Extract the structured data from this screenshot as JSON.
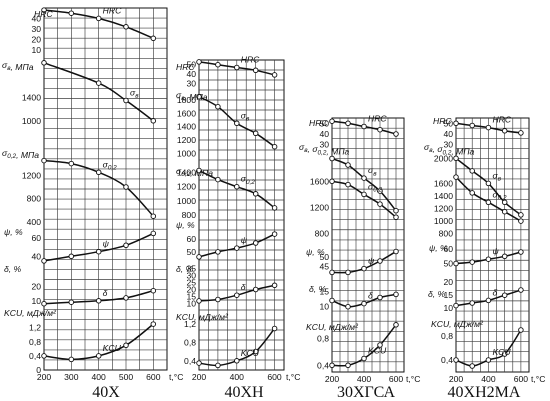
{
  "chart_data": [
    {
      "type": "line",
      "title": "40Х",
      "xlabel": "t,°C",
      "x_ticks": [
        "200",
        "300",
        "400",
        "500",
        "600"
      ],
      "xlim": [
        200,
        650
      ],
      "axes": [
        {
          "label": "HRC",
          "ticks": [
            "10",
            "20",
            "30",
            "40"
          ],
          "ylim": [
            5,
            50
          ]
        },
        {
          "label": "σв, МПа",
          "ticks": [
            "1000",
            "1400"
          ],
          "ylim": [
            600,
            2100
          ]
        },
        {
          "label": "σ0,2, МПа",
          "ticks": [
            "400",
            "800",
            "1200"
          ],
          "ylim": [
            350,
            1700
          ]
        },
        {
          "label": "ψ, %",
          "ticks": [
            "40",
            "60"
          ],
          "ylim": [
            25,
            72
          ]
        },
        {
          "label": "δ, %",
          "ticks": [
            "10",
            "20"
          ],
          "ylim": [
            5,
            30
          ]
        },
        {
          "label": "KCU, мДж/м²",
          "ticks": [
            "0",
            "0,4",
            "0,8",
            "1,2"
          ],
          "ylim": [
            0,
            1.7
          ]
        }
      ],
      "series": [
        {
          "name": "HRC",
          "axis": 0,
          "x": [
            200,
            300,
            400,
            500,
            600
          ],
          "y": [
            48,
            45,
            40,
            32,
            21
          ]
        },
        {
          "name": "σв",
          "axis": 1,
          "x": [
            200,
            400,
            500,
            600
          ],
          "y": [
            2000,
            1650,
            1350,
            1000
          ]
        },
        {
          "name": "σ0,2",
          "axis": 2,
          "x": [
            200,
            300,
            400,
            500,
            600
          ],
          "y": [
            1450,
            1400,
            1250,
            1000,
            500
          ]
        },
        {
          "name": "ψ",
          "axis": 3,
          "x": [
            200,
            300,
            400,
            500,
            600
          ],
          "y": [
            35,
            40,
            45,
            52,
            65
          ]
        },
        {
          "name": "δ",
          "axis": 4,
          "x": [
            200,
            300,
            400,
            500,
            600
          ],
          "y": [
            8,
            9,
            10,
            12,
            17
          ]
        },
        {
          "name": "KCU",
          "axis": 5,
          "x": [
            200,
            300,
            400,
            500,
            600
          ],
          "y": [
            0.4,
            0.3,
            0.4,
            0.7,
            1.3
          ]
        }
      ]
    },
    {
      "type": "line",
      "title": "40ХН",
      "xlabel": "t,°C",
      "x_ticks": [
        "200",
        "400",
        "600"
      ],
      "xlim": [
        200,
        650
      ],
      "axes": [
        {
          "label": "HRC",
          "ticks": [
            "30",
            "40",
            "50"
          ],
          "ylim": [
            25,
            55
          ]
        },
        {
          "label": "σв, МПа",
          "ticks": [
            "1000",
            "1200",
            "1400",
            "1600",
            "1800"
          ],
          "ylim": [
            900,
            1950
          ]
        },
        {
          "label": "σ0,2, МПа",
          "ticks": [
            "800",
            "1000",
            "1200",
            "1400"
          ],
          "ylim": [
            700,
            1550
          ]
        },
        {
          "label": "ψ, %",
          "ticks": [
            "50",
            "60"
          ],
          "ylim": [
            42,
            72
          ]
        },
        {
          "label": "δ, %",
          "ticks": [
            "10",
            "15",
            "20",
            "25",
            "30",
            "35"
          ],
          "ylim": [
            7,
            38
          ]
        },
        {
          "label": "KCU, мДж/м²",
          "ticks": [
            "0,4",
            "0,8",
            "1,2"
          ],
          "ylim": [
            0.2,
            1.5
          ]
        }
      ],
      "series": [
        {
          "name": "HRC",
          "axis": 0,
          "x": [
            200,
            300,
            400,
            500,
            600
          ],
          "y": [
            53,
            50,
            47,
            44,
            39
          ]
        },
        {
          "name": "σв",
          "axis": 1,
          "x": [
            200,
            300,
            400,
            500,
            600
          ],
          "y": [
            1850,
            1700,
            1450,
            1300,
            1100
          ]
        },
        {
          "name": "σ0,2",
          "axis": 2,
          "x": [
            200,
            300,
            400,
            500,
            600
          ],
          "y": [
            1430,
            1300,
            1200,
            1100,
            900
          ]
        },
        {
          "name": "ψ",
          "axis": 3,
          "x": [
            200,
            300,
            400,
            500,
            600
          ],
          "y": [
            46,
            50,
            53,
            57,
            64
          ]
        },
        {
          "name": "δ",
          "axis": 4,
          "x": [
            200,
            300,
            400,
            500,
            600
          ],
          "y": [
            12,
            13,
            16,
            20,
            23
          ]
        },
        {
          "name": "KCU",
          "axis": 5,
          "x": [
            200,
            300,
            400,
            500,
            600
          ],
          "y": [
            0.35,
            0.3,
            0.4,
            0.6,
            1.1
          ]
        }
      ]
    },
    {
      "type": "line",
      "title": "30ХГСА",
      "xlabel": "t,°C",
      "x_ticks": [
        "200",
        "400",
        "600"
      ],
      "xlim": [
        200,
        650
      ],
      "axes": [
        {
          "label": "HRC",
          "ticks": [
            "30",
            "40",
            "50"
          ],
          "ylim": [
            25,
            55
          ]
        },
        {
          "label": "σв, σ0,2, МПа",
          "ticks": [
            "800",
            "1200",
            "1600"
          ],
          "ylim": [
            700,
            2050
          ]
        },
        {
          "label": "ψ, %",
          "ticks": [
            "45",
            "50"
          ],
          "ylim": [
            38,
            58
          ]
        },
        {
          "label": "δ, %",
          "ticks": [
            "10",
            "15"
          ],
          "ylim": [
            7,
            18
          ]
        },
        {
          "label": "KCU, мДж/м²",
          "ticks": [
            "0,4",
            "0,8"
          ],
          "ylim": [
            0.3,
            1.1
          ]
        }
      ],
      "series": [
        {
          "name": "HRC",
          "axis": 0,
          "x": [
            200,
            300,
            400,
            500,
            600
          ],
          "y": [
            52,
            50,
            47,
            44,
            40
          ]
        },
        {
          "name": "σв",
          "axis": 1,
          "x": [
            200,
            300,
            400,
            500,
            600
          ],
          "y": [
            1950,
            1850,
            1650,
            1450,
            1150
          ]
        },
        {
          "name": "σ0,2",
          "axis": 1,
          "x": [
            200,
            300,
            400,
            500,
            600
          ],
          "y": [
            1600,
            1550,
            1400,
            1250,
            1050
          ]
        },
        {
          "name": "ψ",
          "axis": 2,
          "x": [
            200,
            300,
            400,
            500,
            600
          ],
          "y": [
            42,
            42,
            44,
            48,
            53
          ]
        },
        {
          "name": "δ",
          "axis": 3,
          "x": [
            200,
            300,
            400,
            500,
            600
          ],
          "y": [
            12,
            10,
            11,
            13,
            14
          ]
        },
        {
          "name": "KCU",
          "axis": 4,
          "x": [
            200,
            300,
            400,
            500,
            600
          ],
          "y": [
            0.4,
            0.4,
            0.5,
            0.7,
            1.0
          ]
        }
      ]
    },
    {
      "type": "line",
      "title": "40ХН2МА",
      "xlabel": "t,°C",
      "x_ticks": [
        "200",
        "400",
        "600"
      ],
      "xlim": [
        200,
        650
      ],
      "axes": [
        {
          "label": "HRC",
          "ticks": [
            "30",
            "40",
            "50"
          ],
          "ylim": [
            25,
            55
          ]
        },
        {
          "label": "σв, σ0,2, МПа",
          "ticks": [
            "800",
            "1000",
            "1200",
            "1400",
            "1600",
            "2000"
          ],
          "ylim": [
            700,
            2100
          ]
        },
        {
          "label": "ψ, %",
          "ticks": [
            "50",
            "60"
          ],
          "ylim": [
            42,
            65
          ]
        },
        {
          "label": "δ, %",
          "ticks": [
            "10",
            "15",
            "20"
          ],
          "ylim": [
            7,
            22
          ]
        },
        {
          "label": "KCU, мДж/м²",
          "ticks": [
            "0,4",
            "0,8"
          ],
          "ylim": [
            0.2,
            1.1
          ]
        }
      ],
      "series": [
        {
          "name": "HRC",
          "axis": 0,
          "x": [
            200,
            300,
            400,
            500,
            600
          ],
          "y": [
            50,
            48,
            46,
            43,
            41
          ]
        },
        {
          "name": "σв",
          "axis": 1,
          "x": [
            200,
            300,
            400,
            500,
            600
          ],
          "y": [
            2000,
            1800,
            1600,
            1300,
            1100
          ]
        },
        {
          "name": "σ0,2",
          "axis": 1,
          "x": [
            200,
            300,
            400,
            500,
            600
          ],
          "y": [
            1700,
            1450,
            1300,
            1150,
            1000
          ]
        },
        {
          "name": "ψ",
          "axis": 2,
          "x": [
            200,
            300,
            400,
            500,
            600
          ],
          "y": [
            50,
            51,
            53,
            55,
            58
          ]
        },
        {
          "name": "δ",
          "axis": 3,
          "x": [
            200,
            300,
            400,
            500,
            600
          ],
          "y": [
            11,
            12,
            13,
            15,
            17
          ]
        },
        {
          "name": "KCU",
          "axis": 4,
          "x": [
            200,
            300,
            400,
            500,
            600
          ],
          "y": [
            0.4,
            0.3,
            0.4,
            0.5,
            0.9
          ]
        }
      ]
    }
  ]
}
